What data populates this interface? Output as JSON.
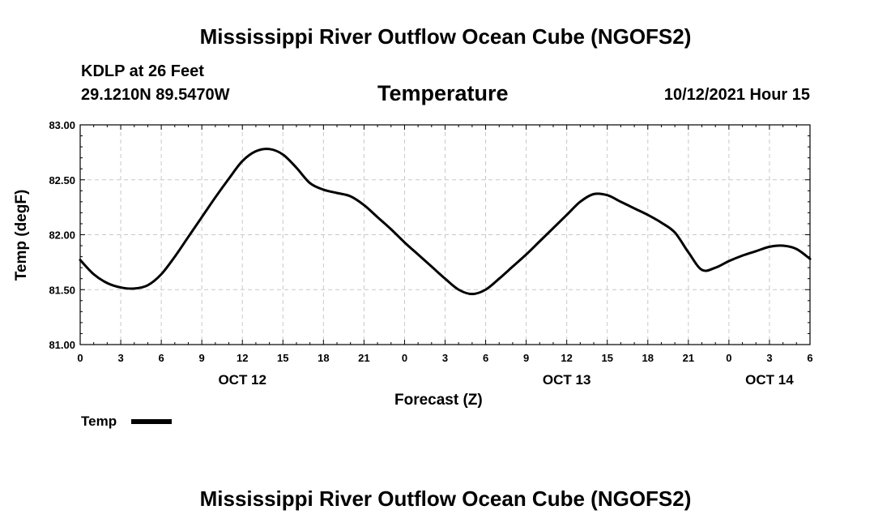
{
  "header": {
    "title": "Mississippi River Outflow Ocean Cube (NGOFS2)",
    "station": "KDLP at 26 Feet",
    "coords": "29.1210N  89.5470W",
    "variable": "Temperature",
    "datetime": "10/12/2021 Hour 15"
  },
  "footer": {
    "title": "Mississippi River Outflow Ocean Cube (NGOFS2)"
  },
  "chart_data": {
    "type": "line",
    "title": "Temperature",
    "xlabel": "Forecast (Z)",
    "ylabel": "Temp (degF)",
    "xlim": [
      0,
      54
    ],
    "ylim": [
      81.0,
      83.0
    ],
    "grid": true,
    "x_ticks": [
      0,
      3,
      6,
      9,
      12,
      15,
      18,
      21,
      24,
      27,
      30,
      33,
      36,
      39,
      42,
      45,
      48,
      51,
      54
    ],
    "x_tick_labels": [
      "0",
      "3",
      "6",
      "9",
      "12",
      "15",
      "18",
      "21",
      "0",
      "3",
      "6",
      "9",
      "12",
      "15",
      "18",
      "21",
      "0",
      "3",
      "6"
    ],
    "y_ticks": [
      81.0,
      81.5,
      82.0,
      82.5,
      83.0
    ],
    "y_tick_labels": [
      "81.00",
      "81.50",
      "82.00",
      "82.50",
      "83.00"
    ],
    "day_labels": [
      {
        "label": "OCT 12",
        "x": 12
      },
      {
        "label": "OCT 13",
        "x": 36
      },
      {
        "label": "OCT 14",
        "x": 51
      }
    ],
    "legend": {
      "label": "Temp",
      "position": "bottom-left"
    },
    "series": [
      {
        "name": "Temp",
        "x": [
          0,
          1,
          2,
          3,
          4,
          5,
          6,
          7,
          8,
          9,
          10,
          11,
          12,
          13,
          14,
          15,
          16,
          17,
          18,
          19,
          20,
          21,
          22,
          23,
          24,
          25,
          26,
          27,
          28,
          29,
          30,
          31,
          32,
          33,
          34,
          35,
          36,
          37,
          38,
          39,
          40,
          41,
          42,
          43,
          44,
          45,
          46,
          47,
          48,
          49,
          50,
          51,
          52,
          53,
          54
        ],
        "values": [
          81.77,
          81.64,
          81.56,
          81.52,
          81.51,
          81.54,
          81.64,
          81.8,
          81.98,
          82.16,
          82.34,
          82.51,
          82.67,
          82.76,
          82.78,
          82.73,
          82.61,
          82.47,
          82.41,
          82.38,
          82.35,
          82.27,
          82.16,
          82.05,
          81.93,
          81.82,
          81.71,
          81.6,
          81.5,
          81.46,
          81.5,
          81.6,
          81.71,
          81.82,
          81.94,
          82.06,
          82.18,
          82.3,
          82.37,
          82.36,
          82.3,
          82.24,
          82.18,
          82.11,
          82.02,
          81.84,
          81.68,
          81.7,
          81.76,
          81.81,
          81.85,
          81.89,
          81.9,
          81.87,
          81.78
        ]
      }
    ]
  }
}
